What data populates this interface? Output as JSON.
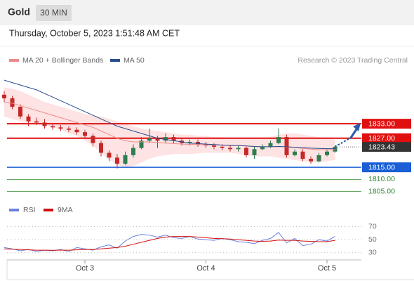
{
  "header": {
    "title": "Gold",
    "timeframe": "30 MIN",
    "datetime": "Thursday, October 5, 2023 1:51:48 AM CET"
  },
  "chart_data": [
    {
      "type": "candlestick",
      "source": "Research © 2023 Trading Central",
      "categories": [
        null,
        null,
        null,
        null,
        null,
        null,
        null,
        null,
        null,
        null,
        "Oct 3",
        null,
        null,
        null,
        null,
        null,
        null,
        null,
        null,
        null,
        null,
        null,
        null,
        null,
        null,
        "Oct 4",
        null,
        null,
        null,
        null,
        null,
        null,
        null,
        null,
        null,
        null,
        null,
        null,
        null,
        null,
        "Oct 5",
        null
      ],
      "up_color": "#2e7d4f",
      "down_color": "#c62828",
      "candles": {
        "open": [
          1845,
          1843.5,
          1840,
          1836,
          1834,
          1833.5,
          1832,
          1831.5,
          1831,
          1830.5,
          1829.5,
          1828,
          1825,
          1821,
          1819,
          1816.5,
          1820,
          1823,
          1826,
          1827,
          1826,
          1827.5,
          1826,
          1825,
          1825.5,
          1824.5,
          1824,
          1823.5,
          1823,
          1822.5,
          1823,
          1820,
          1822.5,
          1823.5,
          1825,
          1827.5,
          1820,
          1821.5,
          1818.5,
          1817.5,
          1820,
          1821.5
        ],
        "high": [
          1846.5,
          1844.5,
          1841,
          1837,
          1835.5,
          1835,
          1833,
          1832.5,
          1832,
          1831.5,
          1830.5,
          1829,
          1826,
          1822,
          1820.5,
          1821.5,
          1824.5,
          1827.5,
          1831,
          1828,
          1829,
          1828.5,
          1827,
          1826.5,
          1826.5,
          1825.5,
          1825,
          1824.5,
          1824,
          1824,
          1823.5,
          1823.5,
          1824.5,
          1826,
          1831,
          1828.5,
          1822.5,
          1822.5,
          1819.5,
          1821,
          1822.5,
          1824
        ],
        "low": [
          1842,
          1839,
          1835,
          1832,
          1832.5,
          1831,
          1830.5,
          1830,
          1829.5,
          1828.5,
          1827,
          1823.5,
          1819.5,
          1817.5,
          1814.5,
          1816,
          1819,
          1822.5,
          1825,
          1823,
          1825,
          1825,
          1824,
          1824,
          1823.5,
          1823,
          1822.5,
          1822,
          1821.5,
          1821.5,
          1819,
          1818.5,
          1822,
          1823,
          1824.5,
          1819,
          1819.5,
          1817.5,
          1816.5,
          1817,
          1819.5,
          1821
        ],
        "close": [
          1843.5,
          1840,
          1836,
          1834,
          1833.5,
          1832,
          1831.5,
          1831,
          1830.5,
          1829.5,
          1828,
          1825,
          1821,
          1819,
          1816.5,
          1820,
          1823,
          1826,
          1827,
          1826,
          1827.5,
          1826,
          1825,
          1825.5,
          1824.5,
          1824,
          1823.5,
          1823,
          1822.5,
          1823,
          1820,
          1822.5,
          1823.5,
          1825,
          1827.5,
          1820,
          1821.5,
          1818.5,
          1817.5,
          1820,
          1821.5,
          1823.43
        ]
      },
      "series": [
        {
          "name": "MA 20 + Bollinger Bands",
          "color": "#f08a8a",
          "band_color": "#fde3e3",
          "values": [
            1842,
            1841.5,
            1840.5,
            1839.5,
            1838.5,
            1837.5,
            1836.5,
            1835.5,
            1834.5,
            1833.5,
            1832.5,
            1831.5,
            1830,
            1828.5,
            1827,
            1826,
            1825.5,
            1825.5,
            1825.5,
            1825.3,
            1825,
            1824.8,
            1824.6,
            1824.5,
            1824.4,
            1824.3,
            1824.2,
            1824.2,
            1824.1,
            1824,
            1823.8,
            1823.6,
            1823.5,
            1823.5,
            1823.6,
            1823.4,
            1823.2,
            1822.8,
            1822.5,
            1822.3,
            1822.2,
            1822.3
          ],
          "upper": [
            1848,
            1847.5,
            1846.5,
            1845,
            1843.5,
            1842,
            1841,
            1840,
            1839,
            1838,
            1837,
            1836.5,
            1836,
            1835,
            1834,
            1833,
            1832,
            1831,
            1830.5,
            1830,
            1829.5,
            1829,
            1828.5,
            1828.5,
            1828,
            1828,
            1827.5,
            1827.5,
            1827,
            1827,
            1827,
            1827,
            1827,
            1827.5,
            1828.5,
            1829,
            1829,
            1828.5,
            1828,
            1827.5,
            1827,
            1826.5
          ],
          "lower": [
            1836,
            1835,
            1834,
            1833.5,
            1833,
            1832.5,
            1831.5,
            1830.5,
            1829,
            1828,
            1826,
            1824,
            1821,
            1818,
            1816,
            1815,
            1815.5,
            1817,
            1818.5,
            1819.5,
            1820,
            1820.5,
            1820.5,
            1820.5,
            1820.8,
            1821,
            1821,
            1821,
            1821,
            1820.5,
            1820,
            1819.5,
            1819.5,
            1819.5,
            1819,
            1818.5,
            1818,
            1817.5,
            1817,
            1817,
            1817.5,
            1818
          ]
        },
        {
          "name": "MA 50",
          "color": "#2a4d8f",
          "values": [
            1851,
            1850,
            1849,
            1848,
            1847,
            1845.5,
            1844,
            1842.5,
            1841,
            1839.5,
            1838,
            1836.5,
            1835,
            1833.5,
            1832,
            1831,
            1830,
            1829,
            1828,
            1827,
            1826.5,
            1826,
            1825.5,
            1825,
            1824.8,
            1824.6,
            1824.4,
            1824.2,
            1824,
            1824,
            1823.8,
            1823.6,
            1823.5,
            1823.5,
            1823.6,
            1823.5,
            1823.3,
            1823.1,
            1822.9,
            1822.8,
            1822.7,
            1822.7
          ]
        }
      ],
      "levels": [
        {
          "value": 1833,
          "label": "1833.00",
          "color": "#e01010",
          "style": "box"
        },
        {
          "value": 1827,
          "label": "1827.00",
          "color": "#e01010",
          "style": "box"
        },
        {
          "value": 1823.43,
          "color": "#333333",
          "style": "price"
        },
        {
          "value": 1815,
          "label": "1815.00",
          "color": "#1a5fd6",
          "style": "box"
        },
        {
          "value": 1810,
          "label": "1810.00",
          "color": "#2e8b2e",
          "style": "text"
        },
        {
          "value": 1805,
          "label": "1805.00",
          "color": "#2e8b2e",
          "style": "text"
        }
      ],
      "ylim": [
        1801.4,
        1852.2
      ]
    },
    {
      "type": "line",
      "series": [
        {
          "name": "RSI",
          "color": "#6a80e0",
          "values": [
            38,
            36,
            33,
            35,
            32,
            34,
            33,
            35,
            32,
            38,
            36,
            34,
            39,
            42,
            37,
            48,
            55,
            58,
            57,
            54,
            57,
            53,
            52,
            55,
            51,
            50,
            49,
            52,
            50,
            47,
            46,
            44,
            49,
            52,
            61,
            45,
            52,
            41,
            43,
            50,
            48,
            55
          ]
        },
        {
          "name": "9MA",
          "color": "#d01010",
          "values": [
            36,
            35.5,
            35,
            34.5,
            34,
            34,
            33.8,
            34,
            34,
            34.5,
            35,
            35,
            36,
            37,
            38,
            40,
            43,
            46,
            49,
            52,
            54,
            55,
            55,
            55,
            54,
            53,
            52,
            51.5,
            51,
            50,
            49,
            48,
            47.5,
            48,
            49.5,
            49,
            49,
            48,
            47.5,
            47,
            47,
            49
          ]
        }
      ],
      "ylim": [
        19,
        89
      ],
      "yticks": [
        30,
        50,
        70
      ],
      "grid": true
    }
  ]
}
